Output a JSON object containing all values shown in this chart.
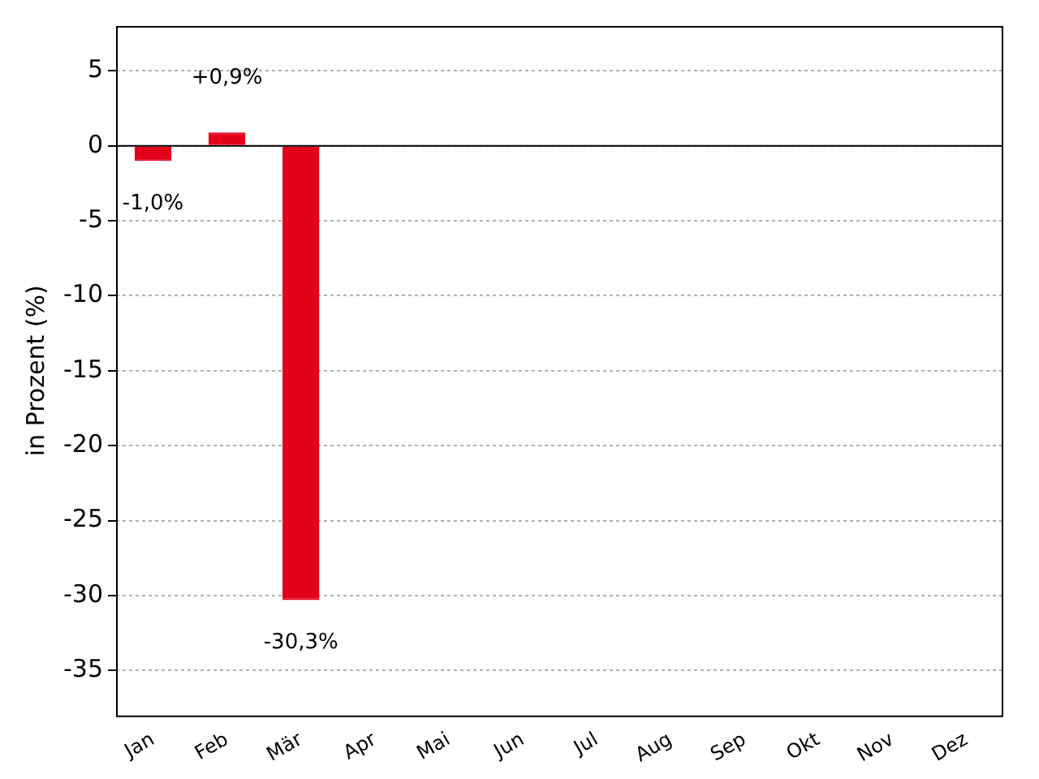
{
  "chart_data": {
    "type": "bar",
    "ylabel": "in Prozent (%)",
    "categories": [
      "Jan",
      "Feb",
      "Mär",
      "Apr",
      "Mai",
      "Jun",
      "Jul",
      "Aug",
      "Sep",
      "Okt",
      "Nov",
      "Dez"
    ],
    "values": [
      -1.0,
      0.9,
      -30.3,
      0,
      0,
      0,
      0,
      0,
      0,
      0,
      0,
      0
    ],
    "value_labels": [
      "-1,0%",
      "+0,9%",
      "-30,3%",
      null,
      null,
      null,
      null,
      null,
      null,
      null,
      null,
      null
    ],
    "color": "#e2001a",
    "ylim": [
      -38,
      8
    ],
    "yticks": [
      5,
      0,
      -5,
      -10,
      -15,
      -20,
      -25,
      -30,
      -35
    ],
    "ref_lines": [
      {
        "axis": "y",
        "value": 0,
        "color": "#000000"
      }
    ],
    "grid": "y",
    "legend": false
  }
}
